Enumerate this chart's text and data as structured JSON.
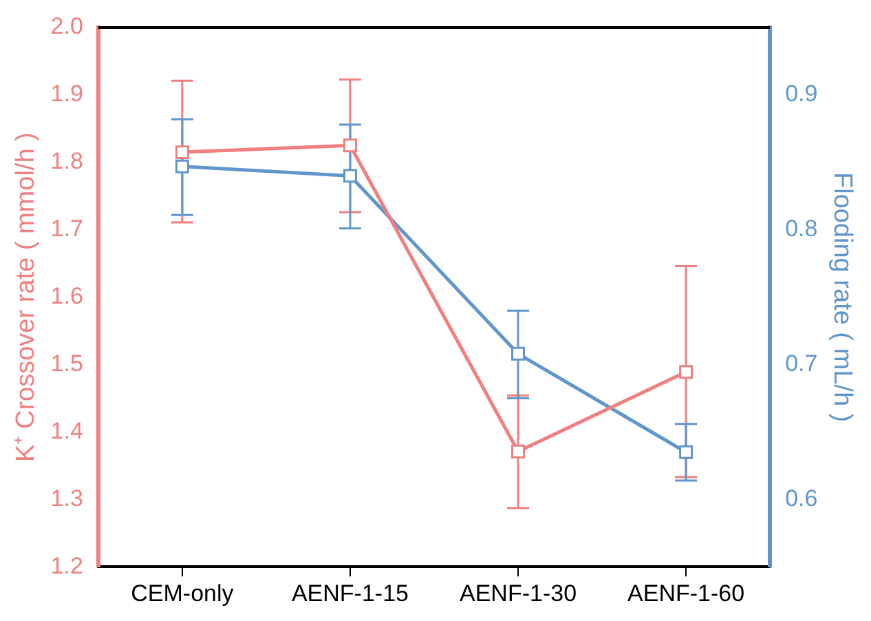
{
  "chart_data": {
    "type": "line",
    "ylabel": "K⁺ Crossover rate ( mmol/h )",
    "y2label": "Flooding rate ( mL/h )",
    "categories": [
      "CEM-only",
      "AENF-1-15",
      "AENF-1-30",
      "AENF-1-60"
    ],
    "series": [
      {
        "color": "#f07f7f",
        "values": [
          1.815,
          1.825,
          1.371,
          1.489
        ],
        "errors": [
          [
            1.711,
            1.921
          ],
          [
            1.726,
            1.923
          ],
          [
            1.287,
            1.454
          ],
          [
            1.333,
            1.646
          ]
        ]
      },
      {
        "color": "#6196cc",
        "axis": "y2",
        "values": [
          0.847,
          0.84,
          0.708,
          0.635
        ],
        "errors": [
          [
            0.811,
            0.882
          ],
          [
            0.801,
            0.878
          ],
          [
            0.675,
            0.74
          ],
          [
            0.614,
            0.656
          ]
        ]
      }
    ],
    "ylim": [
      1.2,
      2.0
    ],
    "yticks": [
      1.2,
      1.3,
      1.4,
      1.5,
      1.6,
      1.7,
      1.8,
      1.9,
      {
        "value": 2,
        "label": "2.0"
      }
    ],
    "y2lim": [
      0.55,
      0.95
    ],
    "y2ticks": [
      0.6,
      0.7,
      0.8,
      0.9
    ],
    "marker": "square",
    "line_style": "solid",
    "grid": false,
    "legend": false
  }
}
